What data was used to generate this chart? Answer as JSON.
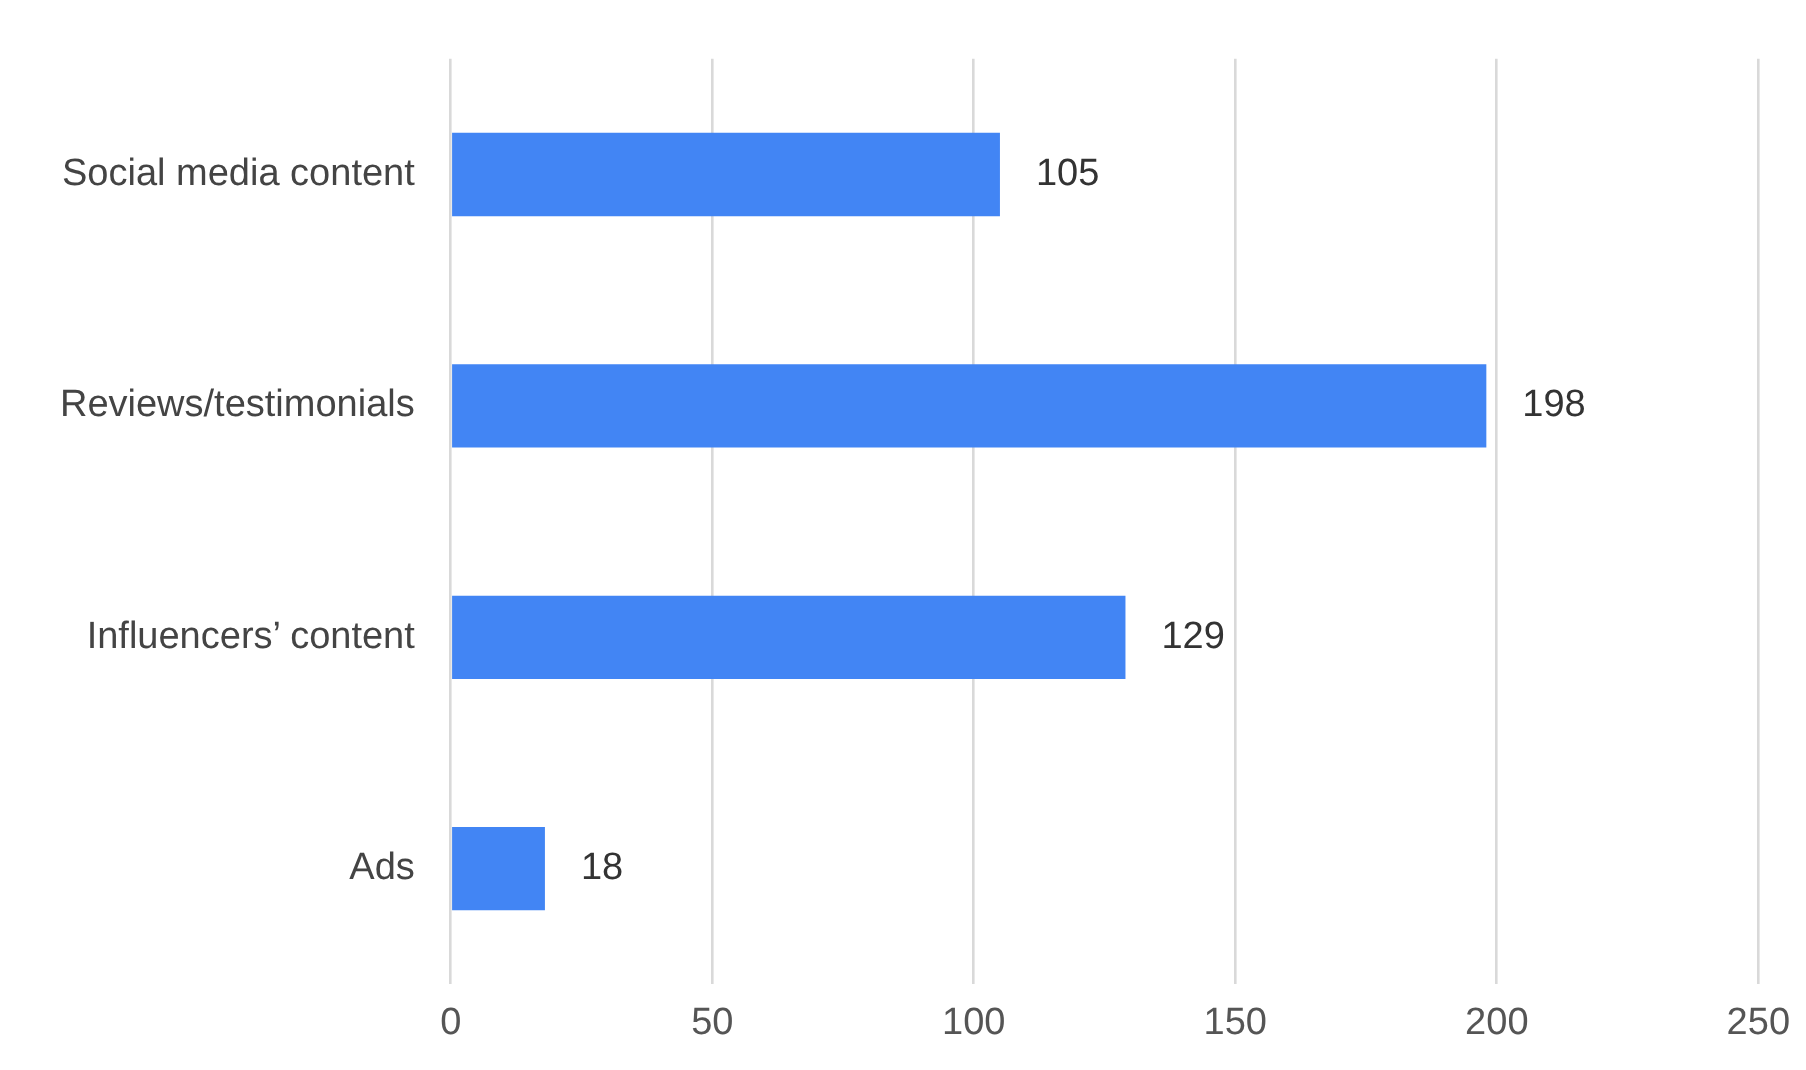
{
  "chart_data": {
    "type": "bar",
    "orientation": "horizontal",
    "categories": [
      "Social media content",
      "Reviews/testimonials",
      "Influencers’ content",
      "Ads"
    ],
    "values": [
      105,
      198,
      129,
      18
    ],
    "color": "#4285f4",
    "xlim": [
      0,
      250
    ],
    "xticks": [
      0,
      50,
      100,
      150,
      200,
      250
    ],
    "grid": "x",
    "data_labels": true
  }
}
